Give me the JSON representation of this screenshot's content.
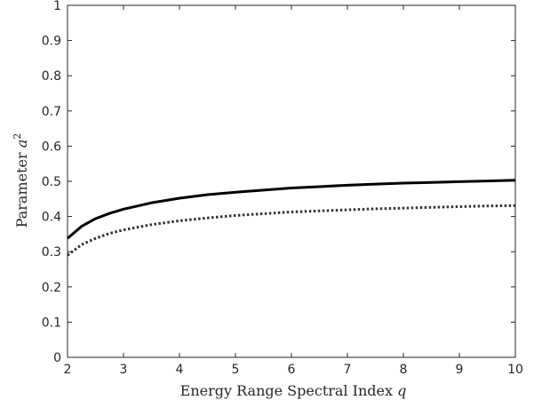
{
  "chart_data": {
    "type": "line",
    "title": "",
    "xlabel": {
      "text": "Energy Range Spectral Index ",
      "symbol": "q"
    },
    "ylabel": {
      "text": "Parameter ",
      "symbol": "a",
      "superscript": "2"
    },
    "xlim": [
      2,
      10
    ],
    "ylim": [
      0,
      1
    ],
    "xticks": [
      2,
      3,
      4,
      5,
      6,
      7,
      8,
      9,
      10
    ],
    "yticks": [
      0,
      0.1,
      0.2,
      0.3,
      0.4,
      0.5,
      0.6,
      0.7,
      0.8,
      0.9,
      1
    ],
    "ytick_labels": [
      "0",
      "0.1",
      "0.2",
      "0.3",
      "0.4",
      "0.5",
      "0.6",
      "0.7",
      "0.8",
      "0.9",
      "1"
    ],
    "grid": false,
    "legend": null,
    "series": [
      {
        "style": "solid",
        "color": "#000000",
        "x": [
          2.0,
          2.25,
          2.5,
          2.75,
          3.0,
          3.5,
          4.0,
          4.5,
          5.0,
          5.5,
          6.0,
          6.5,
          7.0,
          7.5,
          8.0,
          8.5,
          9.0,
          9.5,
          10.0
        ],
        "y": [
          0.338,
          0.372,
          0.394,
          0.409,
          0.421,
          0.439,
          0.452,
          0.462,
          0.469,
          0.475,
          0.481,
          0.485,
          0.489,
          0.492,
          0.495,
          0.497,
          0.499,
          0.501,
          0.503
        ]
      },
      {
        "style": "dotted",
        "color": "#333333",
        "x": [
          2.0,
          2.25,
          2.5,
          2.75,
          3.0,
          3.5,
          4.0,
          4.5,
          5.0,
          5.5,
          6.0,
          6.5,
          7.0,
          7.5,
          8.0,
          8.5,
          9.0,
          9.5,
          10.0
        ],
        "y": [
          0.29,
          0.32,
          0.338,
          0.352,
          0.362,
          0.377,
          0.388,
          0.396,
          0.403,
          0.408,
          0.413,
          0.416,
          0.419,
          0.422,
          0.424,
          0.426,
          0.428,
          0.43,
          0.431
        ]
      }
    ]
  }
}
